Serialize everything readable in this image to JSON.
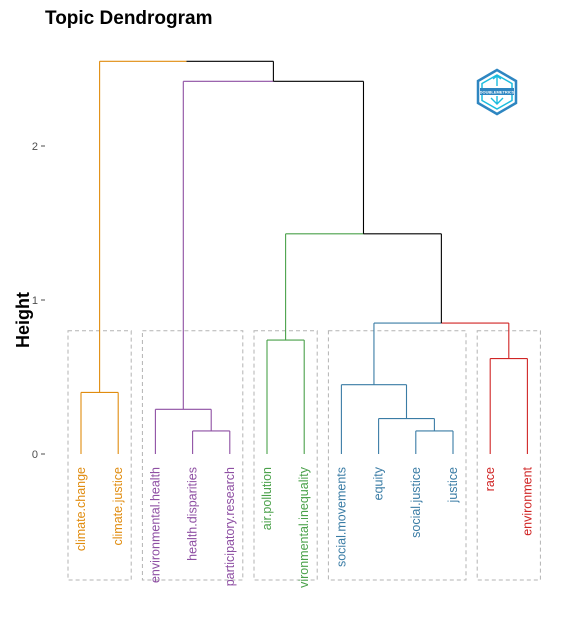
{
  "chart_data": {
    "type": "dendrogram",
    "title": "Topic Dendrogram",
    "ylabel": "Height",
    "y_ticks": [
      0,
      1,
      2
    ],
    "ylim": [
      -0.8,
      2.7
    ],
    "colors": {
      "trunk": "#000000",
      "clusters": [
        "#E08C0F",
        "#8E4FA3",
        "#4AA14A",
        "#3A7CA5",
        "#D02525"
      ]
    },
    "leaves": [
      {
        "label": "climate.change",
        "cluster": 0
      },
      {
        "label": "climate.justice",
        "cluster": 0
      },
      {
        "label": "environmental.health",
        "cluster": 1
      },
      {
        "label": "health.disparities",
        "cluster": 1
      },
      {
        "label": "participatory.research",
        "cluster": 1
      },
      {
        "label": "air.pollution",
        "cluster": 2
      },
      {
        "label": "vironmental.inequality",
        "cluster": 2
      },
      {
        "label": "social.movements",
        "cluster": 3
      },
      {
        "label": "equity",
        "cluster": 3
      },
      {
        "label": "social.justice",
        "cluster": 3
      },
      {
        "label": "justice",
        "cluster": 3
      },
      {
        "label": "race",
        "cluster": 4
      },
      {
        "label": "environment",
        "cluster": 4
      }
    ],
    "merges": [
      {
        "left": "leaf:0",
        "right": "leaf:1",
        "height": 0.4,
        "cluster": 0
      },
      {
        "left": "leaf:3",
        "right": "leaf:4",
        "height": 0.15,
        "cluster": 1
      },
      {
        "left": "leaf:2",
        "right": "node:1",
        "height": 0.29,
        "cluster": 1
      },
      {
        "left": "leaf:5",
        "right": "leaf:6",
        "height": 0.74,
        "cluster": 2
      },
      {
        "left": "leaf:9",
        "right": "leaf:10",
        "height": 0.15,
        "cluster": 3
      },
      {
        "left": "leaf:8",
        "right": "node:4",
        "height": 0.23,
        "cluster": 3
      },
      {
        "left": "leaf:7",
        "right": "node:5",
        "height": 0.45,
        "cluster": 3
      },
      {
        "left": "leaf:11",
        "right": "leaf:12",
        "height": 0.62,
        "cluster": 4
      },
      {
        "left": "node:6",
        "right": "node:7",
        "height": 0.85,
        "cluster": -1
      },
      {
        "left": "node:3",
        "right": "node:8",
        "height": 1.43,
        "cluster": -1
      },
      {
        "left": "node:2",
        "right": "node:9",
        "height": 2.42,
        "cluster": -1
      },
      {
        "left": "node:0",
        "right": "node:10",
        "height": 2.55,
        "cluster": -1
      }
    ]
  },
  "logo": {
    "text": "DOUBLEMETRICS",
    "color": "#2E86C1"
  }
}
